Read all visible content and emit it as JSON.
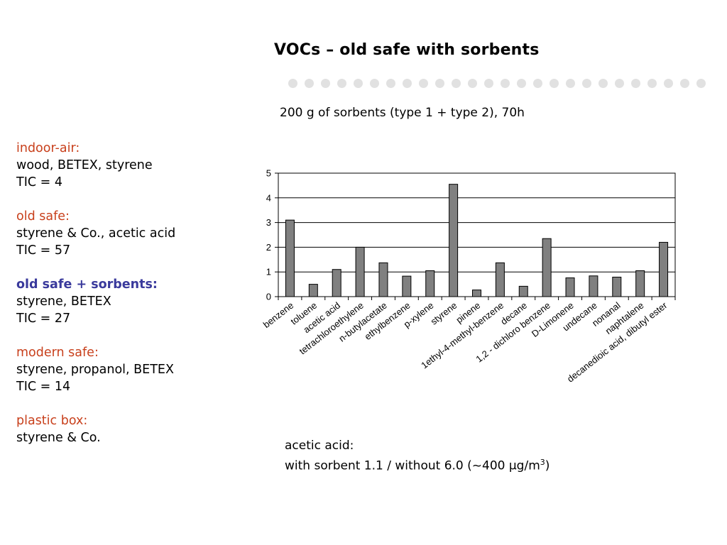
{
  "title": "VOCs – old safe with sorbents",
  "dot_count": 26,
  "left_panel": [
    {
      "heading": "indoor-air:",
      "style": "red",
      "lines": [
        "wood, BETEX, styrene",
        "TIC = 4"
      ]
    },
    {
      "heading": "old safe:",
      "style": "red",
      "lines": [
        "styrene & Co., acetic acid",
        "TIC = 57"
      ]
    },
    {
      "heading": "old safe + sorbents:",
      "style": "blue-bold",
      "lines": [
        "styrene, BETEX",
        "TIC = 27"
      ]
    },
    {
      "heading": "modern safe:",
      "style": "red",
      "lines": [
        "styrene, propanol, BETEX",
        "TIC = 14"
      ]
    },
    {
      "heading": "plastic box:",
      "style": "red",
      "lines": [
        "styrene & Co."
      ]
    }
  ],
  "colors": {
    "red_heading": "#c8401c",
    "blue_heading": "#3a3a9c",
    "bar_fill": "#808080",
    "dots": "#e1e1e1"
  },
  "note": {
    "line1": "acetic acid:",
    "line2_prefix": "with sorbent 1.1 / without 6.0  (~400 µg/m",
    "line2_sup": "3",
    "line2_suffix": ")"
  },
  "chart_data": {
    "type": "bar",
    "title": "200 g of sorbents (type 1 + type 2), 70h",
    "categories": [
      "benzene",
      "toluene",
      "acetic acid",
      "tetrachloroethylene",
      "n-butylacetate",
      "ethylbenzene",
      "p-xylene",
      "styrene",
      "pinene",
      "1ethyl-4-methyl-benzene",
      "decane",
      "1,2 - dichloro benzene",
      "D-Limonene",
      "undecane",
      "nonanal",
      "naphtalene",
      "decanedioic acid, dibutyl ester"
    ],
    "values": [
      3.1,
      0.5,
      1.1,
      2.0,
      1.37,
      0.83,
      1.05,
      4.55,
      0.27,
      1.37,
      0.42,
      2.35,
      0.76,
      0.84,
      0.79,
      1.05,
      2.2
    ],
    "ylim": [
      0,
      5
    ],
    "yticks": [
      0,
      1,
      2,
      3,
      4,
      5
    ],
    "grid": true,
    "xlabel": "",
    "ylabel": ""
  }
}
